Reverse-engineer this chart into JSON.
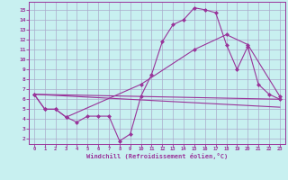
{
  "bg_color": "#c8f0f0",
  "line_color": "#993399",
  "grid_color": "#aaaacc",
  "xlabel": "Windchill (Refroidissement éolien,°C)",
  "xlim": [
    -0.5,
    23.5
  ],
  "ylim": [
    1.5,
    15.8
  ],
  "xticks": [
    0,
    1,
    2,
    3,
    4,
    5,
    6,
    7,
    8,
    9,
    10,
    11,
    12,
    13,
    14,
    15,
    16,
    17,
    18,
    19,
    20,
    21,
    22,
    23
  ],
  "yticks": [
    2,
    3,
    4,
    5,
    6,
    7,
    8,
    9,
    10,
    11,
    12,
    13,
    14,
    15
  ],
  "curve1_x": [
    0,
    1,
    2,
    3,
    4,
    5,
    6,
    7,
    8,
    9,
    10,
    11,
    12,
    13,
    14,
    15,
    16,
    17,
    18,
    19,
    20,
    21,
    22,
    23
  ],
  "curve1_y": [
    6.5,
    5.0,
    5.0,
    4.2,
    3.7,
    4.3,
    4.3,
    4.3,
    1.8,
    2.5,
    6.3,
    8.5,
    11.8,
    13.5,
    14.0,
    15.2,
    15.0,
    14.7,
    11.5,
    9.0,
    11.3,
    7.5,
    6.5,
    6.0
  ],
  "curve2_x": [
    0,
    1,
    2,
    3,
    10,
    15,
    18,
    20,
    23
  ],
  "curve2_y": [
    6.5,
    5.0,
    5.0,
    4.2,
    7.5,
    11.0,
    12.5,
    11.5,
    6.3
  ],
  "curve3_x": [
    0,
    23
  ],
  "curve3_y": [
    6.5,
    6.0
  ],
  "curve4_x": [
    0,
    23
  ],
  "curve4_y": [
    6.5,
    5.2
  ]
}
